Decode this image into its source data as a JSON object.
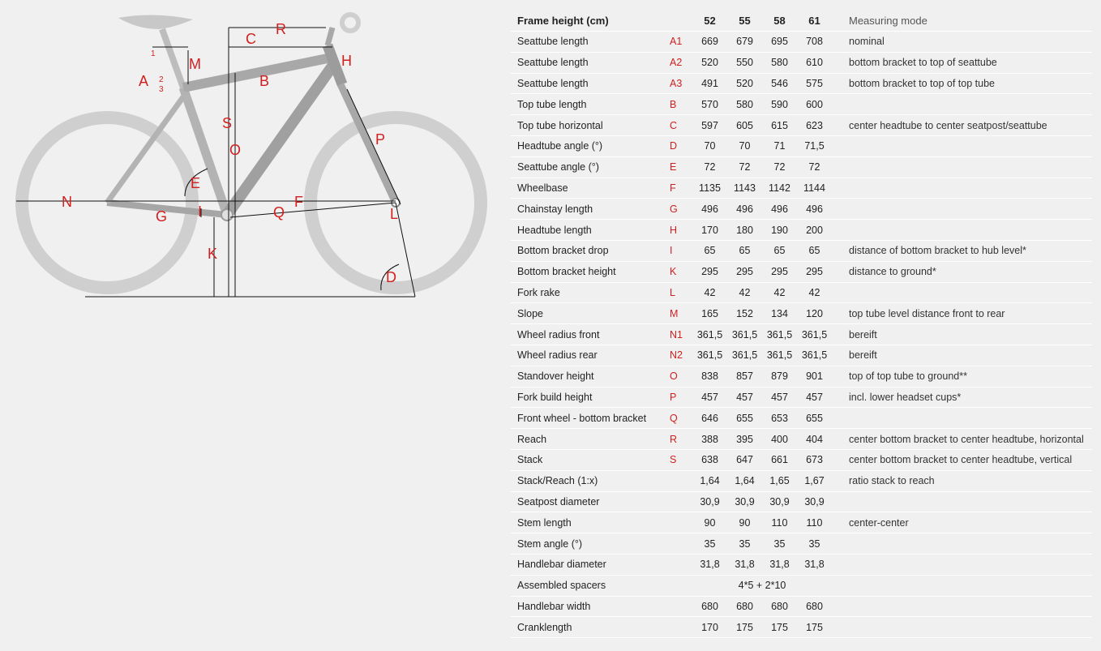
{
  "diagram": {
    "labels": [
      "R",
      "C",
      "M",
      "H",
      "A",
      "B",
      "S",
      "O",
      "E",
      "P",
      "N",
      "G",
      "I",
      "F",
      "Q",
      "L",
      "K",
      "D"
    ],
    "small_labels": [
      "1",
      "2",
      "3"
    ]
  },
  "table": {
    "header": {
      "label": "Frame height (cm)",
      "sizes": [
        "52",
        "55",
        "58",
        "61"
      ],
      "mode": "Measuring mode"
    },
    "rows": [
      {
        "label": "Seattube length",
        "code": "A1",
        "values": [
          "669",
          "679",
          "695",
          "708"
        ],
        "mode": "nominal"
      },
      {
        "label": "Seattube length",
        "code": "A2",
        "values": [
          "520",
          "550",
          "580",
          "610"
        ],
        "mode": "bottom bracket to top of seattube"
      },
      {
        "label": "Seattube length",
        "code": "A3",
        "values": [
          "491",
          "520",
          "546",
          "575"
        ],
        "mode": "bottom bracket to top of top tube"
      },
      {
        "label": "Top tube length",
        "code": "B",
        "values": [
          "570",
          "580",
          "590",
          "600"
        ],
        "mode": ""
      },
      {
        "label": "Top tube horizontal",
        "code": "C",
        "values": [
          "597",
          "605",
          "615",
          "623"
        ],
        "mode": "center headtube to center seatpost/seattube"
      },
      {
        "label": "Headtube angle (°)",
        "code": "D",
        "values": [
          "70",
          "70",
          "71",
          "71,5"
        ],
        "mode": ""
      },
      {
        "label": "Seattube angle (°)",
        "code": "E",
        "values": [
          "72",
          "72",
          "72",
          "72"
        ],
        "mode": ""
      },
      {
        "label": "Wheelbase",
        "code": "F",
        "values": [
          "1135",
          "1143",
          "1142",
          "1144"
        ],
        "mode": ""
      },
      {
        "label": "Chainstay length",
        "code": "G",
        "values": [
          "496",
          "496",
          "496",
          "496"
        ],
        "mode": ""
      },
      {
        "label": "Headtube length",
        "code": "H",
        "values": [
          "170",
          "180",
          "190",
          "200"
        ],
        "mode": ""
      },
      {
        "label": "Bottom bracket drop",
        "code": "I",
        "values": [
          "65",
          "65",
          "65",
          "65"
        ],
        "mode": "distance of bottom bracket to hub level*"
      },
      {
        "label": "Bottom bracket height",
        "code": "K",
        "values": [
          "295",
          "295",
          "295",
          "295"
        ],
        "mode": "distance to ground*"
      },
      {
        "label": "Fork rake",
        "code": "L",
        "values": [
          "42",
          "42",
          "42",
          "42"
        ],
        "mode": ""
      },
      {
        "label": "Slope",
        "code": "M",
        "values": [
          "165",
          "152",
          "134",
          "120"
        ],
        "mode": "top tube level distance front to rear"
      },
      {
        "label": "Wheel radius front",
        "code": "N1",
        "values": [
          "361,5",
          "361,5",
          "361,5",
          "361,5"
        ],
        "mode": "bereift"
      },
      {
        "label": "Wheel radius rear",
        "code": "N2",
        "values": [
          "361,5",
          "361,5",
          "361,5",
          "361,5"
        ],
        "mode": "bereift"
      },
      {
        "label": "Standover height",
        "code": "O",
        "values": [
          "838",
          "857",
          "879",
          "901"
        ],
        "mode": "top of top tube to ground**"
      },
      {
        "label": "Fork build height",
        "code": "P",
        "values": [
          "457",
          "457",
          "457",
          "457"
        ],
        "mode": "incl. lower headset cups*"
      },
      {
        "label": "Front wheel - bottom bracket",
        "code": "Q",
        "values": [
          "646",
          "655",
          "653",
          "655"
        ],
        "mode": ""
      },
      {
        "label": "Reach",
        "code": "R",
        "values": [
          "388",
          "395",
          "400",
          "404"
        ],
        "mode": "center bottom bracket to center headtube, horizontal"
      },
      {
        "label": "Stack",
        "code": "S",
        "values": [
          "638",
          "647",
          "661",
          "673"
        ],
        "mode": "center bottom bracket to center headtube, vertical"
      },
      {
        "label": "Stack/Reach (1:x)",
        "code": "",
        "values": [
          "1,64",
          "1,64",
          "1,65",
          "1,67"
        ],
        "mode": "ratio stack to reach"
      },
      {
        "label": "Seatpost diameter",
        "code": "",
        "values": [
          "30,9",
          "30,9",
          "30,9",
          "30,9"
        ],
        "mode": ""
      },
      {
        "label": "Stem length",
        "code": "",
        "values": [
          "90",
          "90",
          "110",
          "110"
        ],
        "mode": "center-center"
      },
      {
        "label": "Stem angle (°)",
        "code": "",
        "values": [
          "35",
          "35",
          "35",
          "35"
        ],
        "mode": ""
      },
      {
        "label": "Handlebar diameter",
        "code": "",
        "values": [
          "31,8",
          "31,8",
          "31,8",
          "31,8"
        ],
        "mode": ""
      },
      {
        "label": "Assembled spacers",
        "code": "",
        "span_value": "4*5 + 2*10",
        "mode": ""
      },
      {
        "label": "Handlebar width",
        "code": "",
        "values": [
          "680",
          "680",
          "680",
          "680"
        ],
        "mode": ""
      },
      {
        "label": "Cranklength",
        "code": "",
        "values": [
          "170",
          "175",
          "175",
          "175"
        ],
        "mode": ""
      }
    ]
  }
}
